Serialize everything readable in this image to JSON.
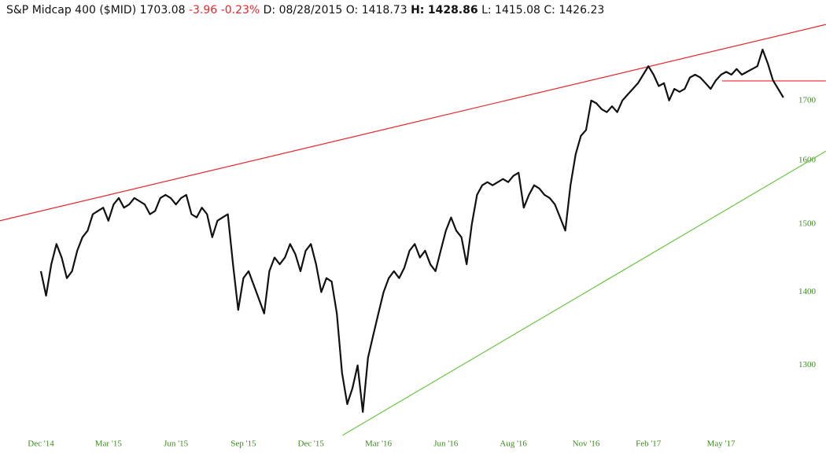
{
  "header": {
    "symbol": "S&P Midcap 400 ($MID)",
    "last": "1703.08",
    "change": "-3.96",
    "change_pct": "-0.23%",
    "d_label": "D:",
    "date": "08/28/2015",
    "o_label": "O:",
    "open": "1418.73",
    "h_label": "H:",
    "high": "1428.86",
    "l_label": "L:",
    "low": "1415.08",
    "c_label": "C:",
    "close": "1426.23"
  },
  "chart_data": {
    "type": "line",
    "color": "#111111",
    "log_scale": true,
    "categories": [
      "Dec '14",
      null,
      null,
      null,
      null,
      null,
      null,
      null,
      null,
      null,
      null,
      null,
      null,
      "Mar '15",
      null,
      null,
      null,
      null,
      null,
      null,
      null,
      null,
      null,
      null,
      null,
      null,
      "Jun '15",
      null,
      null,
      null,
      null,
      null,
      null,
      null,
      null,
      null,
      null,
      null,
      null,
      "Sep '15",
      null,
      null,
      null,
      null,
      null,
      null,
      null,
      null,
      null,
      null,
      null,
      null,
      "Dec '15",
      null,
      null,
      null,
      null,
      null,
      null,
      null,
      null,
      null,
      null,
      null,
      null,
      "Mar '16",
      null,
      null,
      null,
      null,
      null,
      null,
      null,
      null,
      null,
      null,
      null,
      null,
      "Jun '16",
      null,
      null,
      null,
      null,
      null,
      null,
      null,
      null,
      null,
      null,
      null,
      null,
      "Aug '16",
      null,
      null,
      null,
      null,
      null,
      null,
      null,
      null,
      null,
      null,
      null,
      null,
      null,
      "Nov '16",
      null,
      null,
      null,
      null,
      null,
      null,
      null,
      null,
      null,
      null,
      null,
      "Feb '17",
      null,
      null,
      null,
      null,
      null,
      null,
      null,
      null,
      null,
      null,
      null,
      null,
      null,
      "May '17",
      null,
      null,
      null,
      null,
      null,
      null,
      null,
      null,
      null,
      null,
      null,
      null
    ],
    "values": [
      1430,
      1395,
      1440,
      1470,
      1450,
      1420,
      1430,
      1460,
      1480,
      1490,
      1515,
      1520,
      1525,
      1505,
      1530,
      1540,
      1525,
      1530,
      1540,
      1535,
      1530,
      1515,
      1520,
      1540,
      1545,
      1540,
      1530,
      1540,
      1545,
      1515,
      1510,
      1525,
      1515,
      1480,
      1505,
      1510,
      1515,
      1440,
      1375,
      1420,
      1430,
      1410,
      1390,
      1370,
      1430,
      1450,
      1440,
      1450,
      1470,
      1455,
      1430,
      1460,
      1470,
      1440,
      1400,
      1420,
      1415,
      1370,
      1290,
      1250,
      1270,
      1300,
      1240,
      1310,
      1340,
      1370,
      1400,
      1420,
      1430,
      1420,
      1435,
      1460,
      1470,
      1450,
      1460,
      1440,
      1430,
      1460,
      1490,
      1510,
      1490,
      1480,
      1440,
      1500,
      1545,
      1560,
      1565,
      1560,
      1565,
      1570,
      1565,
      1575,
      1580,
      1525,
      1545,
      1560,
      1555,
      1545,
      1540,
      1530,
      1510,
      1490,
      1560,
      1610,
      1640,
      1650,
      1700,
      1695,
      1685,
      1680,
      1690,
      1680,
      1700,
      1710,
      1720,
      1730,
      1745,
      1760,
      1745,
      1725,
      1730,
      1700,
      1720,
      1715,
      1720,
      1740,
      1745,
      1740,
      1730,
      1720,
      1735,
      1745,
      1750,
      1745,
      1755,
      1745,
      1750,
      1755,
      1760,
      1790,
      1765,
      1735,
      1720,
      1705
    ],
    "ylim": [
      1205,
      1845
    ],
    "yticks": [
      1300,
      1400,
      1500,
      1600,
      1700
    ],
    "trendlines": [
      {
        "color": "#e8262b",
        "x": [
          -7.88,
          151.2
        ],
        "y": [
          1505,
          1836
        ]
      },
      {
        "color": "#6cc644",
        "x": [
          58.1,
          151.2
        ],
        "y": [
          1211,
          1615
        ]
      },
      {
        "color": "#e8262b",
        "x": [
          131.2,
          151.2
        ],
        "y": [
          1734,
          1734
        ]
      }
    ]
  }
}
